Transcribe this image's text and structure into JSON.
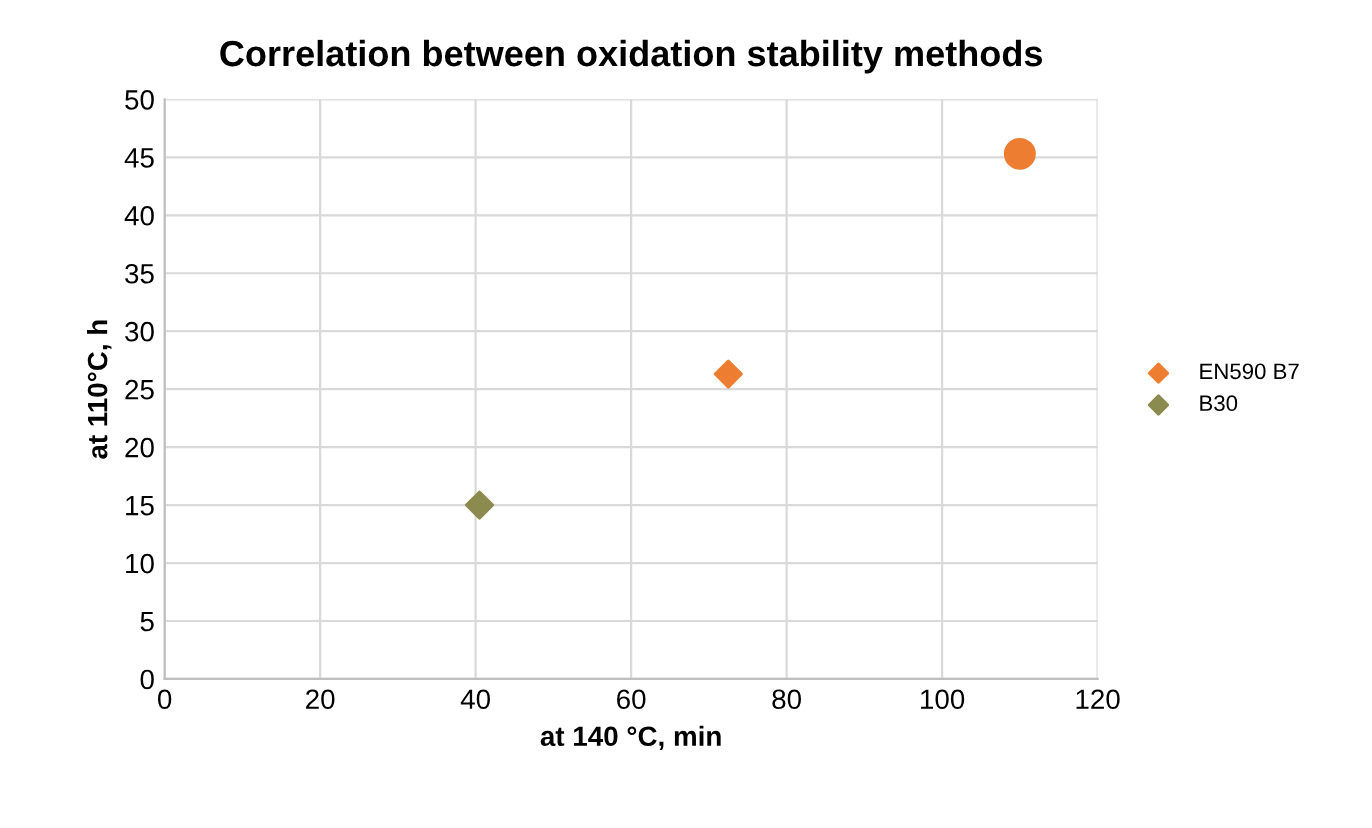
{
  "chart_data": {
    "type": "scatter",
    "title": "Correlation between oxidation stability methods",
    "xlabel": "at 140 °C, min",
    "ylabel": "at 110°C, h",
    "xlim": [
      0,
      120
    ],
    "xticks": [
      0,
      20,
      40,
      60,
      80,
      100,
      120
    ],
    "ylim": [
      0,
      50
    ],
    "yticks": [
      0,
      5,
      10,
      15,
      20,
      25,
      30,
      35,
      40,
      45,
      50
    ],
    "grid": true,
    "legend": "right",
    "series": [
      {
        "name": "EN590 B7",
        "color": "#ed7d31",
        "marker": "diamond",
        "x": [
          72.5
        ],
        "values": [
          26.3
        ]
      },
      {
        "name": "B30",
        "color": "#8b8a4f",
        "marker": "diamond",
        "x": [
          40.5
        ],
        "values": [
          15
        ]
      },
      {
        "color": "#ed7d31",
        "marker": "circle",
        "x": [
          110
        ],
        "values": [
          45.3
        ]
      }
    ]
  }
}
